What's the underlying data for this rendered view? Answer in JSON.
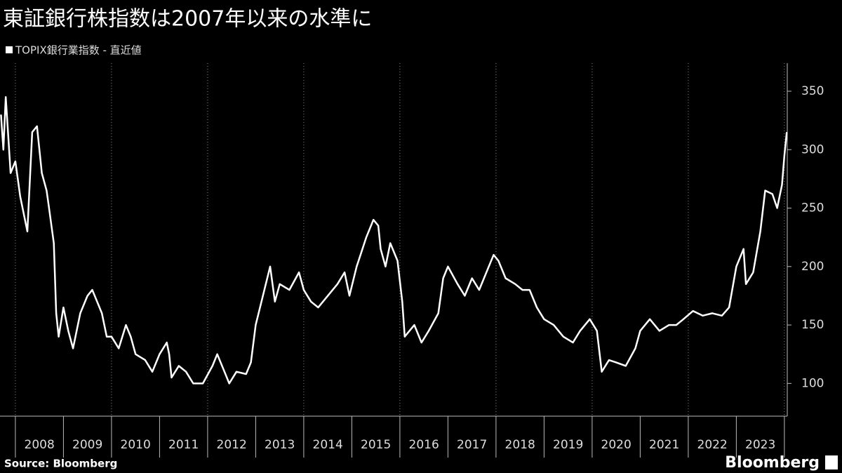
{
  "chart_data": {
    "type": "line",
    "title": "東証銀行株指数は2007年以来の水準に",
    "source": "Source: Bloomberg",
    "brand": "Bloomberg",
    "series": [
      {
        "name": "TOPIX銀行業指数 - 直近値",
        "color": "#ffffff",
        "x": [
          2007.7,
          2007.75,
          2007.8,
          2007.9,
          2008.0,
          2008.1,
          2008.2,
          2008.25,
          2008.35,
          2008.45,
          2008.55,
          2008.65,
          2008.7,
          2008.8,
          2008.85,
          2008.9,
          2009.0,
          2009.1,
          2009.2,
          2009.35,
          2009.5,
          2009.6,
          2009.7,
          2009.8,
          2009.9,
          2010.0,
          2010.15,
          2010.3,
          2010.4,
          2010.5,
          2010.7,
          2010.85,
          2011.0,
          2011.15,
          2011.2,
          2011.25,
          2011.4,
          2011.55,
          2011.7,
          2011.9,
          2012.1,
          2012.2,
          2012.35,
          2012.45,
          2012.6,
          2012.8,
          2012.9,
          2013.0,
          2013.15,
          2013.3,
          2013.4,
          2013.5,
          2013.7,
          2013.9,
          2014.0,
          2014.15,
          2014.3,
          2014.5,
          2014.7,
          2014.85,
          2014.95,
          2015.1,
          2015.3,
          2015.45,
          2015.55,
          2015.6,
          2015.7,
          2015.8,
          2015.95,
          2016.05,
          2016.1,
          2016.3,
          2016.45,
          2016.6,
          2016.8,
          2016.9,
          2017.0,
          2017.2,
          2017.35,
          2017.5,
          2017.65,
          2017.8,
          2017.95,
          2018.05,
          2018.2,
          2018.4,
          2018.55,
          2018.7,
          2018.85,
          2019.0,
          2019.2,
          2019.4,
          2019.6,
          2019.75,
          2019.95,
          2020.1,
          2020.2,
          2020.35,
          2020.5,
          2020.7,
          2020.9,
          2021.0,
          2021.2,
          2021.4,
          2021.6,
          2021.75,
          2021.9,
          2022.1,
          2022.3,
          2022.5,
          2022.7,
          2022.85,
          2023.0,
          2023.15,
          2023.2,
          2023.35,
          2023.5,
          2023.6,
          2023.75,
          2023.85,
          2023.95,
          2024.0,
          2024.05
        ],
        "values": [
          330,
          300,
          345,
          280,
          290,
          260,
          240,
          230,
          315,
          320,
          280,
          265,
          250,
          220,
          160,
          140,
          165,
          145,
          130,
          160,
          175,
          180,
          170,
          160,
          140,
          140,
          130,
          150,
          140,
          125,
          120,
          110,
          125,
          135,
          125,
          105,
          115,
          110,
          100,
          100,
          115,
          125,
          110,
          100,
          110,
          108,
          118,
          150,
          175,
          200,
          170,
          185,
          180,
          195,
          180,
          170,
          165,
          175,
          185,
          195,
          175,
          200,
          225,
          240,
          235,
          215,
          200,
          220,
          205,
          170,
          140,
          150,
          135,
          145,
          160,
          190,
          200,
          185,
          175,
          190,
          180,
          195,
          210,
          205,
          190,
          185,
          180,
          180,
          165,
          155,
          150,
          140,
          135,
          145,
          155,
          145,
          110,
          120,
          118,
          115,
          130,
          145,
          155,
          145,
          150,
          150,
          155,
          162,
          158,
          160,
          158,
          165,
          200,
          215,
          185,
          195,
          230,
          265,
          262,
          250,
          270,
          295,
          315
        ]
      }
    ],
    "xlim": [
      2007.68,
      2024.06
    ],
    "xticks": [
      2008,
      2009,
      2010,
      2011,
      2012,
      2013,
      2014,
      2015,
      2016,
      2017,
      2018,
      2019,
      2020,
      2021,
      2022,
      2023
    ],
    "x_gridlines": [
      2008,
      2010,
      2012,
      2014,
      2016,
      2018,
      2020,
      2022,
      2024
    ],
    "ylim": [
      72,
      374
    ],
    "yticks": [
      100,
      150,
      200,
      250,
      300,
      350
    ],
    "grid": true
  }
}
